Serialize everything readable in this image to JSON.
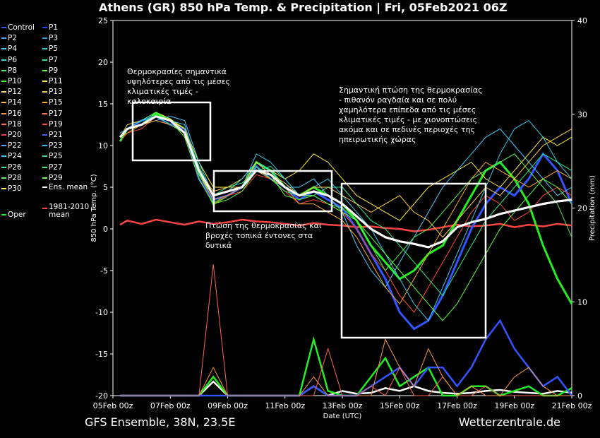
{
  "title": "Athens  (GR)  850 hPa Temp. & Precipitation | Fri, 05Feb2021 06Z",
  "footer": {
    "left": "GFS Ensemble, 38N, 23.5E",
    "right": "Wetterzentrale.de"
  },
  "legend": {
    "items": [
      {
        "label": "Control",
        "color": "#3355ff"
      },
      {
        "label": "P1",
        "color": "#2244ee"
      },
      {
        "label": "P2",
        "color": "#33aaff"
      },
      {
        "label": "P3",
        "color": "#2299dd"
      },
      {
        "label": "P4",
        "color": "#44ccff"
      },
      {
        "label": "P5",
        "color": "#22dddd"
      },
      {
        "label": "P6",
        "color": "#33ddcc"
      },
      {
        "label": "P7",
        "color": "#22ee88"
      },
      {
        "label": "P8",
        "color": "#44ee66"
      },
      {
        "label": "P9",
        "color": "#55ff33"
      },
      {
        "label": "P10",
        "color": "#33ff22"
      },
      {
        "label": "P11",
        "color": "#ffee33"
      },
      {
        "label": "P12",
        "color": "#ffdd66"
      },
      {
        "label": "P13",
        "color": "#ffcc44"
      },
      {
        "label": "P14",
        "color": "#ffbb44"
      },
      {
        "label": "P15",
        "color": "#ffaa22"
      },
      {
        "label": "P16",
        "color": "#ff9944"
      },
      {
        "label": "P17",
        "color": "#ff7744"
      },
      {
        "label": "P18",
        "color": "#ff6655"
      },
      {
        "label": "P19",
        "color": "#ff4433"
      },
      {
        "label": "P20",
        "color": "#ff3355"
      },
      {
        "label": "P21",
        "color": "#4466ff"
      },
      {
        "label": "P22",
        "color": "#44aaff"
      },
      {
        "label": "P23",
        "color": "#33bbff"
      },
      {
        "label": "P24",
        "color": "#33ccee"
      },
      {
        "label": "P25",
        "color": "#33ddaa"
      },
      {
        "label": "P26",
        "color": "#33ee99"
      },
      {
        "label": "P27",
        "color": "#44ee77"
      },
      {
        "label": "P28",
        "color": "#55ee55"
      },
      {
        "label": "P29",
        "color": "#66ff44"
      },
      {
        "label": "P30",
        "color": "#ffee55"
      },
      {
        "label": "Ens. mean",
        "color": "#ffffff"
      },
      {
        "label": "Oper",
        "color": "#22ee22"
      },
      {
        "label": "1981-2010 mean",
        "color": "#ff4444"
      }
    ]
  },
  "annotations": [
    {
      "text": "Θερμοκρασίες σημαντικά υψηλότερες από τις μέσες κλιματικές τιμές - καλοκαιρία"
    },
    {
      "text": "Πτώση της θερμοκρασίας και βροχές τοπικά έντονες στα δυτικά"
    },
    {
      "text": "Σημαντική πτώση της θερμοκρασίας - πιθανόν ραγδαία και σε πολύ χαμηλότερα επίπεδα από τις μέσες κλιματικές τιμές - με χιονοπτώσεις ακόμα και σε πεδινές περιοχές της ηπειρωτικής χώρας"
    }
  ],
  "chart_data": {
    "type": "line",
    "xlabel": "Date (UTC)",
    "ylabel": "850 hPa Temp. (°C)",
    "y2label": "Precipitation (mm)",
    "ylim": [
      -20,
      25
    ],
    "y2lim": [
      0,
      40
    ],
    "yticks": [
      25,
      20,
      15,
      10,
      5,
      0,
      -5,
      -10,
      -15,
      -20
    ],
    "y2ticks": [
      40,
      30,
      20,
      10,
      0
    ],
    "xlim": [
      "05Feb 00z",
      "21Feb 00z"
    ],
    "xticks": [
      "05Feb 00z",
      "07Feb 00z",
      "09Feb 00z",
      "11Feb 00z",
      "13Feb 00z",
      "15Feb 00z",
      "17Feb 00z",
      "19Feb 00z",
      "21Feb 00z"
    ],
    "grid": false,
    "x_days": [
      0.25,
      0.5,
      1,
      1.5,
      2,
      2.5,
      3,
      3.5,
      4,
      4.5,
      5,
      5.5,
      6,
      6.5,
      7,
      7.5,
      8,
      8.5,
      9,
      9.5,
      10,
      10.5,
      11,
      11.5,
      12,
      12.5,
      13,
      13.5,
      14,
      14.5,
      15,
      15.5,
      16
    ],
    "series": [
      {
        "name": "Ens. mean",
        "color": "#ffffff",
        "values": [
          11,
          12,
          12.5,
          13.5,
          13,
          11.5,
          7,
          4,
          4.5,
          5,
          7,
          6.5,
          5,
          4,
          4.5,
          4,
          3,
          1.5,
          0,
          -1,
          -1.5,
          -1.8,
          -2.2,
          -1.5,
          0.2,
          0.8,
          1.2,
          1.8,
          2.2,
          2.6,
          3.0,
          3.3,
          3.5
        ]
      },
      {
        "name": "Oper",
        "color": "#22ee22",
        "values": [
          10.5,
          12,
          12.5,
          13.8,
          13,
          12,
          7,
          3,
          4,
          5,
          8,
          7,
          5,
          4,
          5,
          4,
          3,
          1,
          -2,
          -4,
          -6,
          -5,
          -3,
          -2,
          1,
          4,
          7,
          8,
          6,
          3,
          -2,
          -6,
          -9
        ]
      },
      {
        "name": "Control",
        "color": "#3355ff",
        "values": [
          11,
          12,
          13,
          13.5,
          12.5,
          12,
          6,
          3.5,
          4,
          5,
          7.5,
          6,
          5,
          3.5,
          4.5,
          3.5,
          2.5,
          0,
          -3,
          -6,
          -10,
          -12,
          -11,
          -8,
          -4,
          0,
          3,
          5,
          4,
          6,
          9,
          7,
          3
        ]
      },
      {
        "name": "P11",
        "color": "#ffee33",
        "values": [
          11,
          12.5,
          13,
          14,
          13.2,
          12,
          8,
          5,
          5,
          6,
          8,
          7,
          6,
          7,
          9,
          8,
          6,
          4,
          3,
          2,
          1,
          3,
          5,
          6,
          7,
          8,
          6,
          5,
          7,
          9,
          11,
          10,
          11
        ]
      },
      {
        "name": "P4",
        "color": "#44ccff",
        "values": [
          11,
          12,
          12.5,
          13,
          13.5,
          13,
          8,
          4,
          4.5,
          6,
          8,
          7,
          5,
          5,
          6,
          4,
          2,
          -2,
          -5,
          -7,
          -4,
          -1,
          2,
          5,
          7,
          9,
          11,
          12,
          10,
          8,
          6,
          4,
          5
        ]
      },
      {
        "name": "P19",
        "color": "#ff4433",
        "values": [
          10.5,
          11.5,
          12,
          13.5,
          13,
          11,
          6,
          3,
          4,
          4.5,
          6.5,
          6,
          4.5,
          3,
          3.5,
          3,
          2,
          0,
          -3,
          -5,
          -8,
          -10,
          -7,
          -4,
          -1,
          2,
          4,
          3,
          1,
          2,
          4,
          5,
          4
        ]
      },
      {
        "name": "P7",
        "color": "#22ee88",
        "values": [
          11,
          12,
          13,
          14,
          13,
          12,
          7.5,
          4,
          5,
          5.5,
          7,
          7.5,
          6,
          4,
          4,
          5,
          5,
          3,
          1,
          0,
          -2,
          -4,
          -6,
          -8,
          -5,
          -2,
          1,
          3,
          5,
          7,
          9,
          8,
          7
        ]
      },
      {
        "name": "P15",
        "color": "#ffaa22",
        "values": [
          11,
          11.5,
          12.5,
          13,
          12.5,
          11.5,
          6.5,
          3.5,
          4,
          5,
          7,
          6,
          5,
          3,
          3,
          2,
          1,
          -1,
          -4,
          -7,
          -9,
          -6,
          -3,
          0,
          3,
          6,
          8,
          7,
          6,
          5,
          6,
          7,
          6
        ]
      },
      {
        "name": "P24",
        "color": "#33ccee",
        "values": [
          11.5,
          12,
          13,
          13.5,
          13,
          12.5,
          7,
          4,
          4.5,
          5,
          9,
          8,
          6,
          4,
          5,
          6,
          4,
          2,
          0,
          -3,
          -6,
          -9,
          -11,
          -7,
          -3,
          1,
          5,
          9,
          12,
          13,
          11,
          8,
          6
        ]
      },
      {
        "name": "P9",
        "color": "#55ff33",
        "values": [
          11,
          12,
          12.5,
          14,
          13,
          11,
          6,
          3,
          3.5,
          4.5,
          7,
          6.5,
          4,
          3.5,
          4,
          3,
          2,
          1,
          -1,
          -3,
          -5,
          -7,
          -9,
          -11,
          -9,
          -6,
          -3,
          0,
          2,
          4,
          6,
          5,
          3
        ]
      },
      {
        "name": "P13",
        "color": "#ffcc44",
        "values": [
          11,
          12,
          12.5,
          13.5,
          13,
          12,
          7,
          4.5,
          5,
          5,
          8,
          6.5,
          5.5,
          4,
          5,
          5,
          4,
          3,
          2,
          3,
          4,
          2,
          1,
          -1,
          1,
          3,
          5,
          4,
          6,
          8,
          10,
          11,
          12
        ]
      },
      {
        "name": "P28",
        "color": "#55ee55",
        "values": [
          10.5,
          12,
          12.5,
          13.5,
          12.5,
          11.5,
          6.5,
          4,
          4.5,
          5,
          7.5,
          6,
          4.5,
          4,
          4,
          3,
          2.5,
          1,
          -2,
          -5,
          -3,
          -1,
          0,
          2,
          4,
          6,
          7,
          8,
          9,
          7,
          5,
          3,
          -1
        ]
      }
    ],
    "climatology": {
      "name": "1981-2010 mean",
      "color": "#ff4444",
      "values": [
        0.5,
        1,
        0.6,
        1.1,
        0.8,
        0.5,
        0.9,
        0.6,
        0.8,
        1.1,
        0.9,
        0.8,
        0.6,
        0.4,
        0.7,
        0.5,
        0.4,
        0.2,
        0.3,
        0.1,
        0.0,
        -0.3,
        -0.1,
        0.2,
        0.5,
        0.3,
        0.4,
        0.6,
        0.2,
        0.5,
        0.3,
        0.6,
        0.4
      ]
    },
    "precip_series": [
      {
        "name": "Ens. mean",
        "color": "#ffffff",
        "values": [
          0,
          0,
          0,
          0,
          0,
          0,
          0,
          1.5,
          0,
          0,
          0,
          0,
          0,
          0,
          1,
          0,
          0.5,
          0.2,
          0.3,
          0.8,
          0.5,
          1,
          0.5,
          0.3,
          0.2,
          0.3,
          0.5,
          0.6,
          0.4,
          0.3,
          0.2,
          0.5,
          0.3
        ]
      },
      {
        "name": "Oper",
        "color": "#22ee22",
        "values": [
          0,
          0,
          0,
          0,
          0,
          0,
          0,
          2,
          0,
          0,
          0,
          0,
          0,
          0,
          6,
          0.5,
          0,
          0,
          2,
          4,
          1,
          2,
          3,
          0,
          0,
          1,
          1,
          0,
          0.5,
          1,
          0,
          0,
          0.8
        ]
      },
      {
        "name": "Control",
        "color": "#3355ff",
        "values": [
          0,
          0,
          0,
          0,
          0,
          0,
          0,
          0,
          0,
          0,
          0,
          0,
          0,
          0,
          1,
          0,
          0,
          0,
          1,
          2,
          3,
          1,
          3,
          3,
          1,
          3,
          6,
          8,
          5,
          3,
          1,
          2,
          0
        ]
      },
      {
        "name": "P18",
        "color": "#ff6655",
        "values": [
          0,
          0,
          0,
          0,
          0,
          0,
          0,
          14,
          0,
          0,
          0,
          0,
          0,
          0,
          0,
          5,
          0,
          0,
          1,
          0,
          3,
          0,
          0,
          2,
          0,
          0,
          1,
          0,
          0,
          0,
          0,
          0,
          0
        ]
      },
      {
        "name": "P16",
        "color": "#ff9944",
        "values": [
          0,
          0,
          0,
          0,
          0,
          0,
          0,
          3,
          0,
          0,
          0,
          0,
          0,
          0,
          2,
          0,
          0,
          0,
          0,
          6,
          3,
          1,
          5,
          2,
          0,
          1,
          0,
          0,
          2,
          3,
          1,
          0,
          0
        ]
      }
    ]
  }
}
